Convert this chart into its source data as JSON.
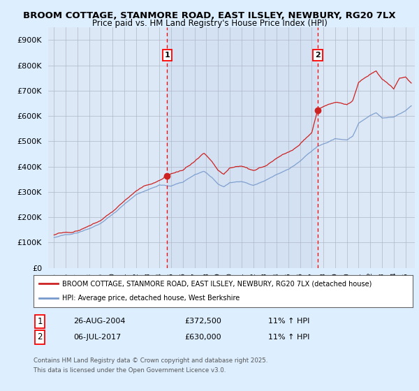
{
  "title_line1": "BROOM COTTAGE, STANMORE ROAD, EAST ILSLEY, NEWBURY, RG20 7LX",
  "title_line2": "Price paid vs. HM Land Registry's House Price Index (HPI)",
  "bg_color": "#ddeeff",
  "plot_bg_color": "#dce8f5",
  "highlight_bg_color": "#e0eeff",
  "red_line_color": "#cc2222",
  "blue_line_color": "#7799cc",
  "marker1_year": 2004.65,
  "marker2_year": 2017.52,
  "legend_line1": "BROOM COTTAGE, STANMORE ROAD, EAST ILSLEY, NEWBURY, RG20 7LX (detached house)",
  "legend_line2": "HPI: Average price, detached house, West Berkshire",
  "table_row1": [
    "1",
    "26-AUG-2004",
    "£372,500",
    "11% ↑ HPI"
  ],
  "table_row2": [
    "2",
    "06-JUL-2017",
    "£630,000",
    "11% ↑ HPI"
  ],
  "footnote": "Contains HM Land Registry data © Crown copyright and database right 2025.\nThis data is licensed under the Open Government Licence v3.0.",
  "ylim": [
    0,
    950000
  ],
  "yticks": [
    0,
    100000,
    200000,
    300000,
    400000,
    500000,
    600000,
    700000,
    800000,
    900000
  ],
  "xmin": 1994.5,
  "xmax": 2025.8
}
